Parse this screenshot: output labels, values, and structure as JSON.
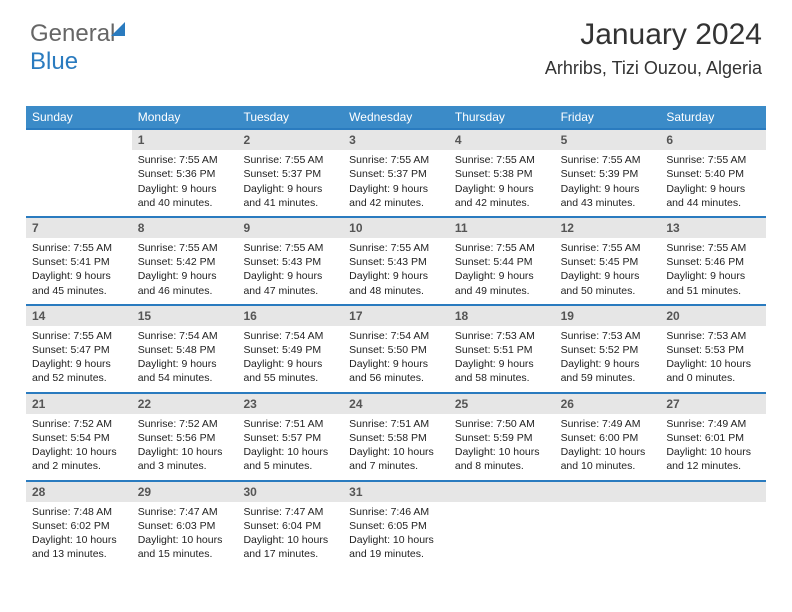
{
  "logo": {
    "part1": "General",
    "part2": "Blue"
  },
  "header": {
    "month_title": "January 2024",
    "location": "Arhribs, Tizi Ouzou, Algeria"
  },
  "colors": {
    "header_bg": "#3b8bc8",
    "week_border": "#2a7bbf",
    "daynum_bg": "#e6e6e6",
    "text": "#222222",
    "background": "#ffffff"
  },
  "weekdays": [
    "Sunday",
    "Monday",
    "Tuesday",
    "Wednesday",
    "Thursday",
    "Friday",
    "Saturday"
  ],
  "weeks": [
    [
      {
        "blank": true
      },
      {
        "num": "1",
        "sunrise": "Sunrise: 7:55 AM",
        "sunset": "Sunset: 5:36 PM",
        "daylight": "Daylight: 9 hours and 40 minutes."
      },
      {
        "num": "2",
        "sunrise": "Sunrise: 7:55 AM",
        "sunset": "Sunset: 5:37 PM",
        "daylight": "Daylight: 9 hours and 41 minutes."
      },
      {
        "num": "3",
        "sunrise": "Sunrise: 7:55 AM",
        "sunset": "Sunset: 5:37 PM",
        "daylight": "Daylight: 9 hours and 42 minutes."
      },
      {
        "num": "4",
        "sunrise": "Sunrise: 7:55 AM",
        "sunset": "Sunset: 5:38 PM",
        "daylight": "Daylight: 9 hours and 42 minutes."
      },
      {
        "num": "5",
        "sunrise": "Sunrise: 7:55 AM",
        "sunset": "Sunset: 5:39 PM",
        "daylight": "Daylight: 9 hours and 43 minutes."
      },
      {
        "num": "6",
        "sunrise": "Sunrise: 7:55 AM",
        "sunset": "Sunset: 5:40 PM",
        "daylight": "Daylight: 9 hours and 44 minutes."
      }
    ],
    [
      {
        "num": "7",
        "sunrise": "Sunrise: 7:55 AM",
        "sunset": "Sunset: 5:41 PM",
        "daylight": "Daylight: 9 hours and 45 minutes."
      },
      {
        "num": "8",
        "sunrise": "Sunrise: 7:55 AM",
        "sunset": "Sunset: 5:42 PM",
        "daylight": "Daylight: 9 hours and 46 minutes."
      },
      {
        "num": "9",
        "sunrise": "Sunrise: 7:55 AM",
        "sunset": "Sunset: 5:43 PM",
        "daylight": "Daylight: 9 hours and 47 minutes."
      },
      {
        "num": "10",
        "sunrise": "Sunrise: 7:55 AM",
        "sunset": "Sunset: 5:43 PM",
        "daylight": "Daylight: 9 hours and 48 minutes."
      },
      {
        "num": "11",
        "sunrise": "Sunrise: 7:55 AM",
        "sunset": "Sunset: 5:44 PM",
        "daylight": "Daylight: 9 hours and 49 minutes."
      },
      {
        "num": "12",
        "sunrise": "Sunrise: 7:55 AM",
        "sunset": "Sunset: 5:45 PM",
        "daylight": "Daylight: 9 hours and 50 minutes."
      },
      {
        "num": "13",
        "sunrise": "Sunrise: 7:55 AM",
        "sunset": "Sunset: 5:46 PM",
        "daylight": "Daylight: 9 hours and 51 minutes."
      }
    ],
    [
      {
        "num": "14",
        "sunrise": "Sunrise: 7:55 AM",
        "sunset": "Sunset: 5:47 PM",
        "daylight": "Daylight: 9 hours and 52 minutes."
      },
      {
        "num": "15",
        "sunrise": "Sunrise: 7:54 AM",
        "sunset": "Sunset: 5:48 PM",
        "daylight": "Daylight: 9 hours and 54 minutes."
      },
      {
        "num": "16",
        "sunrise": "Sunrise: 7:54 AM",
        "sunset": "Sunset: 5:49 PM",
        "daylight": "Daylight: 9 hours and 55 minutes."
      },
      {
        "num": "17",
        "sunrise": "Sunrise: 7:54 AM",
        "sunset": "Sunset: 5:50 PM",
        "daylight": "Daylight: 9 hours and 56 minutes."
      },
      {
        "num": "18",
        "sunrise": "Sunrise: 7:53 AM",
        "sunset": "Sunset: 5:51 PM",
        "daylight": "Daylight: 9 hours and 58 minutes."
      },
      {
        "num": "19",
        "sunrise": "Sunrise: 7:53 AM",
        "sunset": "Sunset: 5:52 PM",
        "daylight": "Daylight: 9 hours and 59 minutes."
      },
      {
        "num": "20",
        "sunrise": "Sunrise: 7:53 AM",
        "sunset": "Sunset: 5:53 PM",
        "daylight": "Daylight: 10 hours and 0 minutes."
      }
    ],
    [
      {
        "num": "21",
        "sunrise": "Sunrise: 7:52 AM",
        "sunset": "Sunset: 5:54 PM",
        "daylight": "Daylight: 10 hours and 2 minutes."
      },
      {
        "num": "22",
        "sunrise": "Sunrise: 7:52 AM",
        "sunset": "Sunset: 5:56 PM",
        "daylight": "Daylight: 10 hours and 3 minutes."
      },
      {
        "num": "23",
        "sunrise": "Sunrise: 7:51 AM",
        "sunset": "Sunset: 5:57 PM",
        "daylight": "Daylight: 10 hours and 5 minutes."
      },
      {
        "num": "24",
        "sunrise": "Sunrise: 7:51 AM",
        "sunset": "Sunset: 5:58 PM",
        "daylight": "Daylight: 10 hours and 7 minutes."
      },
      {
        "num": "25",
        "sunrise": "Sunrise: 7:50 AM",
        "sunset": "Sunset: 5:59 PM",
        "daylight": "Daylight: 10 hours and 8 minutes."
      },
      {
        "num": "26",
        "sunrise": "Sunrise: 7:49 AM",
        "sunset": "Sunset: 6:00 PM",
        "daylight": "Daylight: 10 hours and 10 minutes."
      },
      {
        "num": "27",
        "sunrise": "Sunrise: 7:49 AM",
        "sunset": "Sunset: 6:01 PM",
        "daylight": "Daylight: 10 hours and 12 minutes."
      }
    ],
    [
      {
        "num": "28",
        "sunrise": "Sunrise: 7:48 AM",
        "sunset": "Sunset: 6:02 PM",
        "daylight": "Daylight: 10 hours and 13 minutes."
      },
      {
        "num": "29",
        "sunrise": "Sunrise: 7:47 AM",
        "sunset": "Sunset: 6:03 PM",
        "daylight": "Daylight: 10 hours and 15 minutes."
      },
      {
        "num": "30",
        "sunrise": "Sunrise: 7:47 AM",
        "sunset": "Sunset: 6:04 PM",
        "daylight": "Daylight: 10 hours and 17 minutes."
      },
      {
        "num": "31",
        "sunrise": "Sunrise: 7:46 AM",
        "sunset": "Sunset: 6:05 PM",
        "daylight": "Daylight: 10 hours and 19 minutes."
      },
      {
        "trailing": true
      },
      {
        "trailing": true
      },
      {
        "trailing": true
      }
    ]
  ]
}
